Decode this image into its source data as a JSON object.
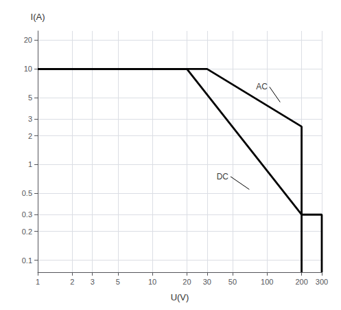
{
  "chart_data": {
    "type": "line",
    "title": "",
    "xlabel": "U(V)",
    "ylabel": "I(A)",
    "log": true,
    "grid": true,
    "xlim": [
      1,
      300
    ],
    "ylim": [
      0.075,
      25
    ],
    "xticks": [
      1,
      2,
      3,
      5,
      10,
      20,
      30,
      50,
      100,
      200,
      300
    ],
    "yticks": [
      0.1,
      0.2,
      0.3,
      0.5,
      1,
      2,
      3,
      5,
      10,
      20
    ],
    "series": [
      {
        "color": "#000000",
        "x": [
          1,
          20,
          200,
          200
        ],
        "values": [
          10,
          10,
          0.3,
          0.075
        ]
      },
      {
        "color": "#000000",
        "x": [
          1,
          30,
          200,
          200,
          300,
          300
        ],
        "values": [
          10,
          10,
          2.5,
          0.3,
          0.3,
          0.075
        ]
      }
    ],
    "annotations": [
      {
        "text": "DC",
        "x": 48,
        "y": 0.75,
        "arrow_x": 70,
        "arrow_y": 0.55
      },
      {
        "text": "AC",
        "x": 105,
        "y": 6.5,
        "arrow_x": 130,
        "arrow_y": 4.5
      }
    ]
  }
}
